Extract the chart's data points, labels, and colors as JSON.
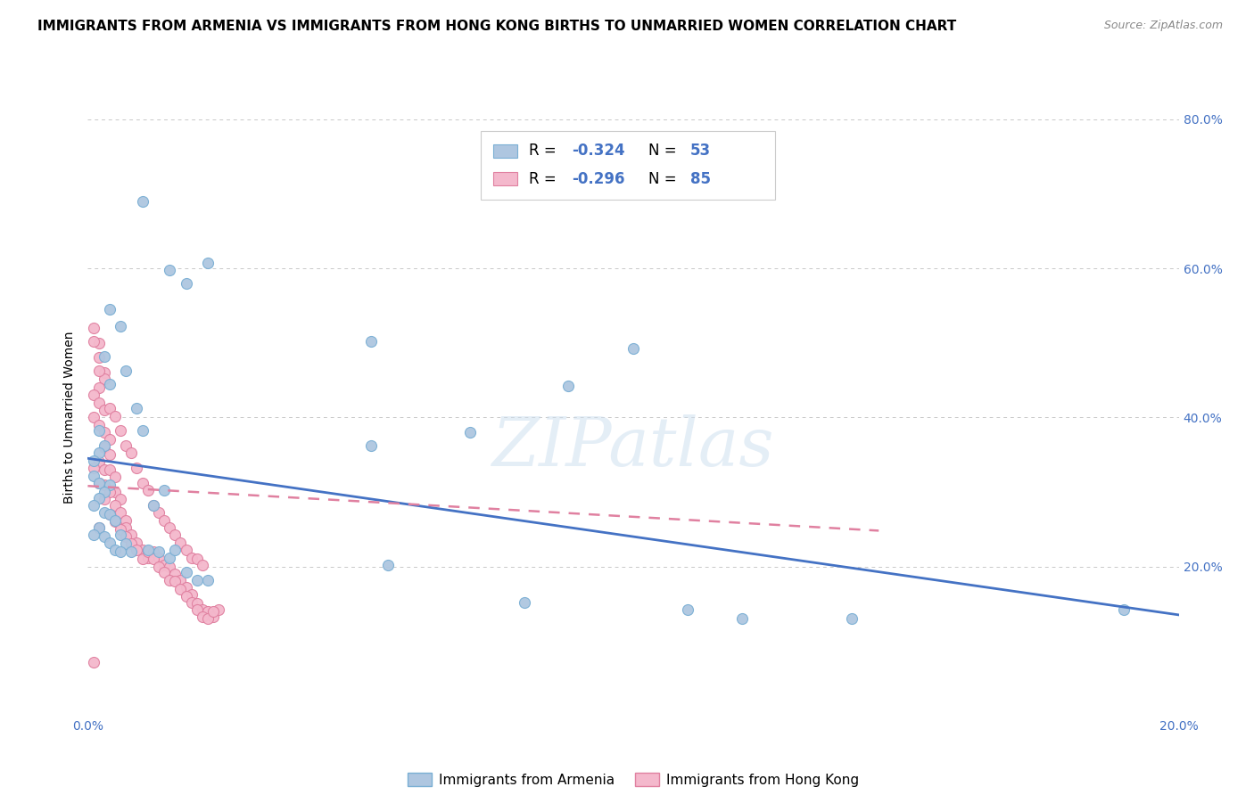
{
  "title": "IMMIGRANTS FROM ARMENIA VS IMMIGRANTS FROM HONG KONG BIRTHS TO UNMARRIED WOMEN CORRELATION CHART",
  "source": "Source: ZipAtlas.com",
  "watermark": "ZIPatlas",
  "ylabel_left": "Births to Unmarried Women",
  "x_min": 0.0,
  "x_max": 0.2,
  "y_min": 0.0,
  "y_max": 0.8,
  "armenia_color": "#aec6e0",
  "armenia_edge_color": "#7aafd4",
  "hongkong_color": "#f4b8cc",
  "hongkong_edge_color": "#e080a0",
  "armenia_line_color": "#4472c4",
  "hongkong_line_color": "#e080a0",
  "armenia_R": -0.324,
  "armenia_N": 53,
  "hongkong_R": -0.296,
  "hongkong_N": 85,
  "legend_text_color": "#4472c4",
  "background_color": "#ffffff",
  "grid_color": "#c8c8c8",
  "title_fontsize": 11,
  "label_fontsize": 10,
  "tick_fontsize": 10,
  "legend_fontsize": 12,
  "source_fontsize": 9
}
